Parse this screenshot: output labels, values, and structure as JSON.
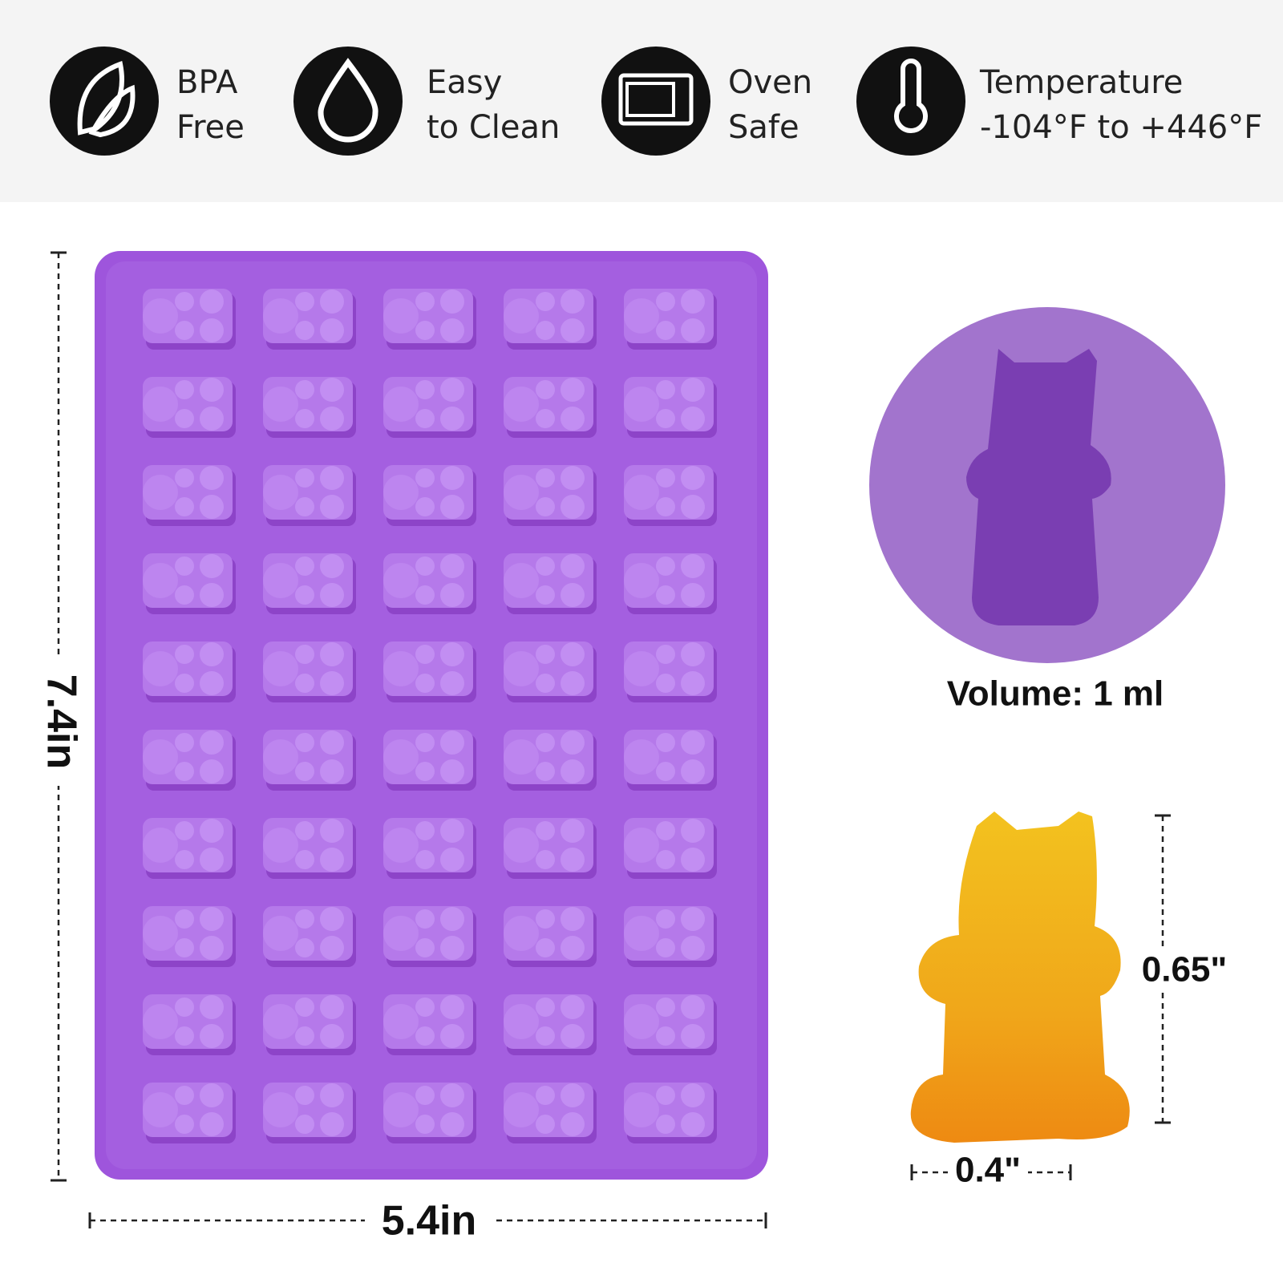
{
  "features": [
    {
      "line1": "BPA",
      "line2": "Free"
    },
    {
      "line1": "Easy",
      "line2": "to Clean"
    },
    {
      "line1": "Oven",
      "line2": "Safe"
    },
    {
      "line1": "Temperature",
      "line2": "-104°F to +446°F"
    }
  ],
  "tray": {
    "height": "7.4in",
    "width": "5.4in"
  },
  "cavity": {
    "volume": "Volume: 1 ml"
  },
  "gummy": {
    "height": "0.65\"",
    "width": "0.4\""
  }
}
